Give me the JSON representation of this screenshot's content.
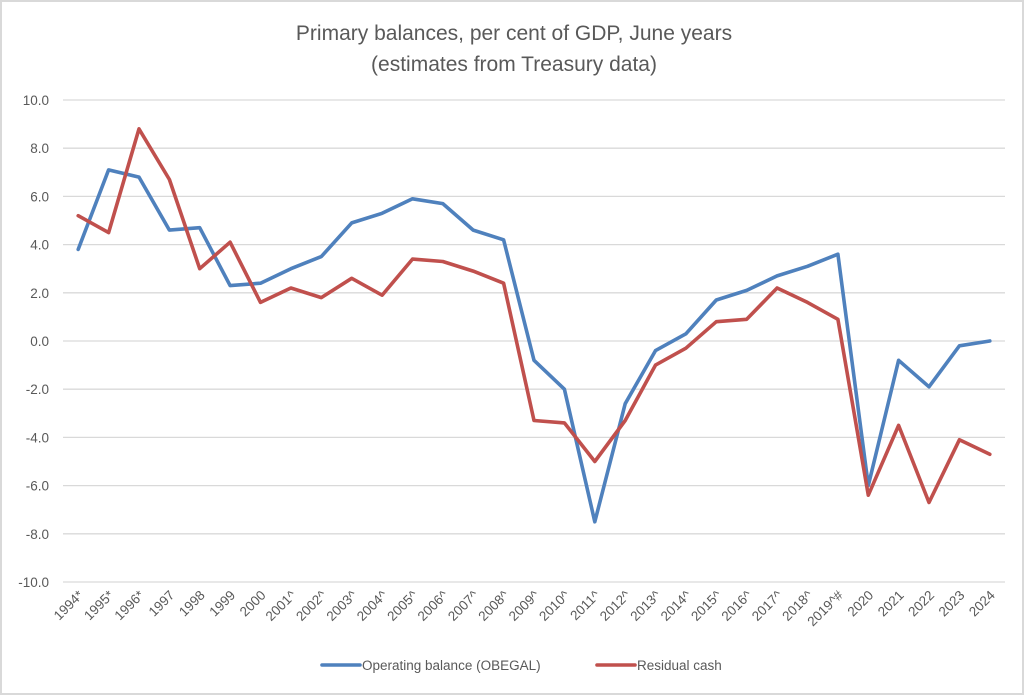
{
  "chart_data": {
    "type": "line",
    "title": "Primary balances, per cent of GDP, June years",
    "subtitle": "(estimates from Treasury data)",
    "xlabel": "",
    "ylabel": "",
    "ylim": [
      -10,
      10
    ],
    "ytick_step": 2,
    "yticks": [
      "10.0",
      "8.0",
      "6.0",
      "4.0",
      "2.0",
      "0.0",
      "-2.0",
      "-4.0",
      "-6.0",
      "-8.0",
      "-10.0"
    ],
    "grid": true,
    "legend_position": "bottom",
    "categories": [
      "1994*",
      "1995*",
      "1996*",
      "1997",
      "1998",
      "1999",
      "2000",
      "2001^",
      "2002^",
      "2003^",
      "2004^",
      "2005^",
      "2006^",
      "2007^",
      "2008^",
      "2009^",
      "2010^",
      "2011^",
      "2012^",
      "2013^",
      "2014^",
      "2015^",
      "2016^",
      "2017^",
      "2018^",
      "2019^#",
      "2020",
      "2021",
      "2022",
      "2023",
      "2024"
    ],
    "series": [
      {
        "name": "Operating balance (OBEGAL)",
        "color": "#4F81BD",
        "values": [
          3.8,
          7.1,
          6.8,
          4.6,
          4.7,
          2.3,
          2.4,
          3.0,
          3.5,
          4.9,
          5.3,
          5.9,
          5.7,
          4.6,
          4.2,
          -0.8,
          -2.0,
          -7.5,
          -2.6,
          -0.4,
          0.3,
          1.7,
          2.1,
          2.7,
          3.1,
          3.6,
          -6.0,
          -0.8,
          -1.9,
          -0.2,
          0.0
        ]
      },
      {
        "name": "Residual cash",
        "color": "#C0504D",
        "values": [
          5.2,
          4.5,
          8.8,
          6.7,
          3.0,
          4.1,
          1.6,
          2.2,
          1.8,
          2.6,
          1.9,
          3.4,
          3.3,
          2.9,
          2.4,
          -3.3,
          -3.4,
          -5.0,
          -3.3,
          -1.0,
          -0.3,
          0.8,
          0.9,
          2.2,
          1.6,
          0.9,
          -6.4,
          -3.5,
          -6.7,
          -4.1,
          -4.7
        ]
      }
    ]
  }
}
